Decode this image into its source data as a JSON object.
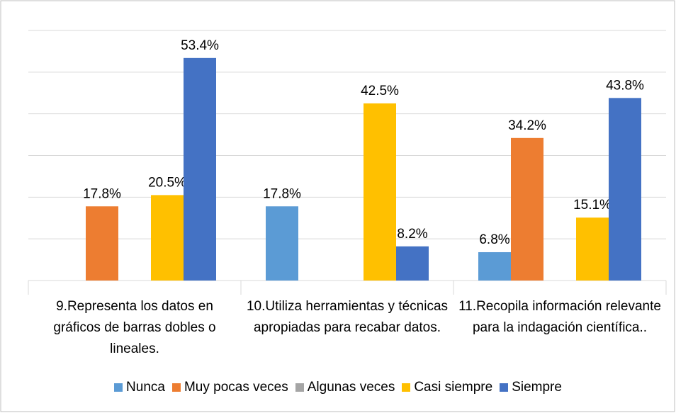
{
  "chart_data": {
    "type": "bar",
    "categories": [
      "9.Representa los datos en gráficos de barras dobles o lineales.",
      "10.Utiliza herramientas y técnicas apropiadas para recabar datos.",
      "11.Recopila información relevante para la indagación científica.."
    ],
    "series": [
      {
        "name": "Nunca",
        "color": "#5b9bd5",
        "values": [
          null,
          17.8,
          6.8
        ],
        "value_labels": [
          null,
          "17.8%",
          "6.8%"
        ]
      },
      {
        "name": "Muy pocas veces",
        "color": "#ed7d31",
        "values": [
          17.8,
          null,
          34.2
        ],
        "value_labels": [
          "17.8%",
          null,
          "34.2%"
        ]
      },
      {
        "name": "Algunas veces",
        "color": "#a5a5a5",
        "values": [
          null,
          null,
          null
        ],
        "value_labels": [
          null,
          null,
          null
        ]
      },
      {
        "name": "Casi siempre",
        "color": "#ffc000",
        "values": [
          20.5,
          42.5,
          15.1
        ],
        "value_labels": [
          "20.5%",
          "42.5%",
          "15.1%"
        ]
      },
      {
        "name": "Siempre",
        "color": "#4472c4",
        "values": [
          53.4,
          8.2,
          43.8
        ],
        "value_labels": [
          "53.4%",
          "8.2%",
          "43.8%"
        ]
      }
    ],
    "ylim": [
      0,
      60
    ],
    "yticks": [
      0,
      10,
      20,
      30,
      40,
      50,
      60
    ],
    "grid": true,
    "legend": "bottom"
  }
}
